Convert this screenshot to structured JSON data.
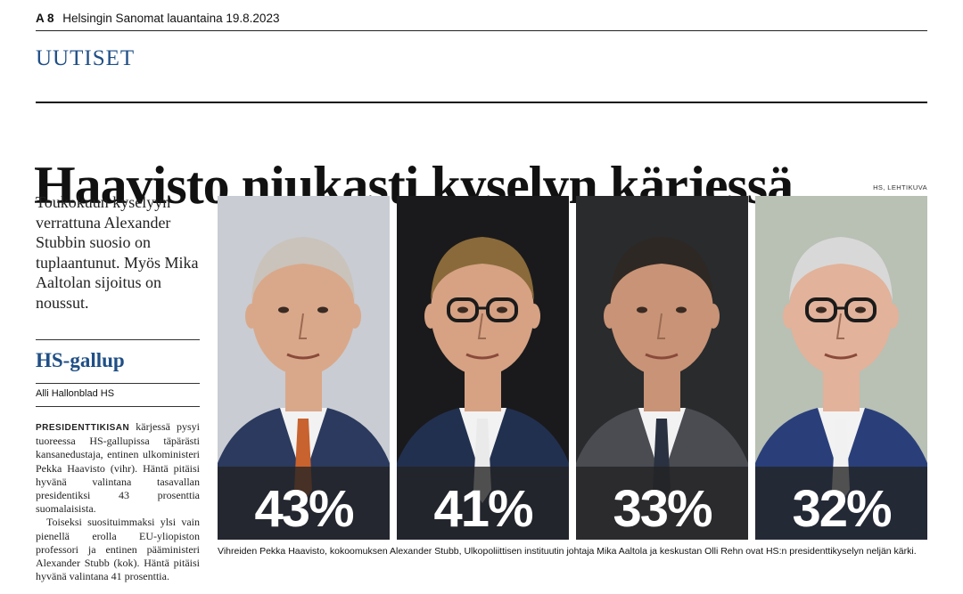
{
  "folio": {
    "page": "A 8",
    "text": "Helsingin Sanomat lauantaina 19.8.2023"
  },
  "section": "UUTISET",
  "headline": "Haavisto niukasti kyselyn kärjessä",
  "lead": "Toukokuun kyselyyn verrattuna Alexander Stubbin suosio on tuplaantunut. Myös Mika Aaltolan sijoitus on noussut.",
  "kicker": "HS-gallup",
  "byline": "Alli Hallonblad HS",
  "body": {
    "p1_caps": "PRESIDENTTIKISAN",
    "p1_a": " kärjessä pysyi tuoreessa HS-gallupissa täpärästi kansanedustaja, entinen ulkoministeri ",
    "p1_name": "Pekka Haavisto",
    "p1_b": " (vihr). Häntä pitäisi hyvänä valintana tasavallan presidentiksi 43 prosenttia suomalaisista.",
    "p2_a": "Toiseksi suosituimmaksi ylsi vain pienellä erolla EU-yliopiston professori ja entinen pääministeri ",
    "p2_name": "Alexander Stubb",
    "p2_b": " (kok). Häntä pitäisi hyvänä valintana 41 prosenttia."
  },
  "photo_credit": "HS, LEHTIKUVA",
  "candidates": [
    {
      "name": "Pekka Haavisto",
      "percent": "43%",
      "skin": "#d9a88a",
      "hair": "#c9c3bb",
      "suit": "#2b3a5e",
      "tie": "#c8622e",
      "bg": "#c9ccd2",
      "glasses": false
    },
    {
      "name": "Alexander Stubb",
      "percent": "41%",
      "skin": "#d6a283",
      "hair": "#8a6a3a",
      "suit": "#22304f",
      "tie": "#eaeaea",
      "bg": "#1a1a1c",
      "glasses": true
    },
    {
      "name": "Mika Aaltola",
      "percent": "33%",
      "skin": "#c89376",
      "hair": "#2e2824",
      "suit": "#4a4c52",
      "tie": "#2a3140",
      "bg": "#2a2b2d",
      "glasses": false
    },
    {
      "name": "Olli Rehn",
      "percent": "32%",
      "skin": "#e2b29a",
      "hair": "#d8d8d8",
      "suit": "#2a3f7a",
      "tie": "#f1f1f1",
      "bg": "#b9c0b4",
      "glasses": true
    }
  ],
  "caption": "Vihreiden Pekka Haavisto, kokoomuksen Alexander Stubb, Ulkopoliittisen instituutin johtaja Mika Aaltola ja keskustan Olli Rehn ovat HS:n presidenttikyselyn neljän kärki."
}
